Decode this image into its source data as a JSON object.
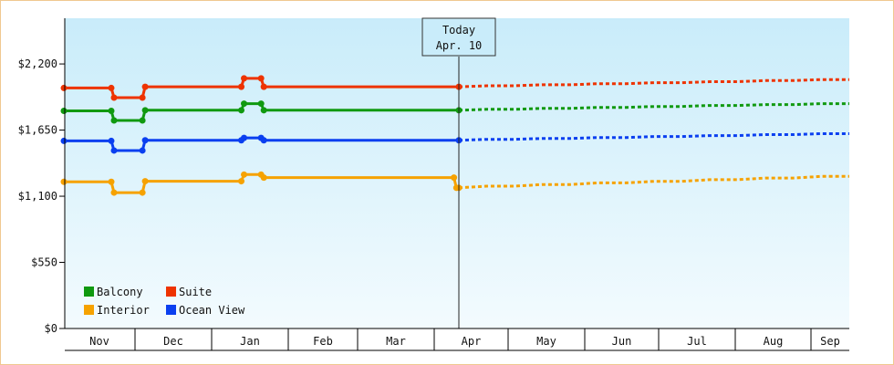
{
  "chart_data": {
    "type": "line",
    "title": "",
    "xlabel": "",
    "ylabel": "",
    "y_ticks": [
      "$0",
      "$550",
      "$1,100",
      "$1,650",
      "$2,200"
    ],
    "y_tick_values": [
      0,
      550,
      1100,
      1650,
      2200
    ],
    "ylim": [
      0,
      2580
    ],
    "x_months": [
      "Nov",
      "Dec",
      "Jan",
      "Feb",
      "Mar",
      "Apr",
      "May",
      "Jun",
      "Jul",
      "Aug",
      "Sep"
    ],
    "today": {
      "title": "Today",
      "date": "Apr. 10"
    },
    "legend": {
      "placement": "bottom-left"
    },
    "series": [
      {
        "name": "Suite",
        "color": "#ee3300",
        "actual": [
          [
            "Oct 31",
            2000
          ],
          [
            "Nov 20",
            2000
          ],
          [
            "Nov 20",
            1920
          ],
          [
            "Dec 3",
            1920
          ],
          [
            "Dec 3",
            2010
          ],
          [
            "Jan 12",
            2010
          ],
          [
            "Jan 12",
            2080
          ],
          [
            "Jan 20",
            2080
          ],
          [
            "Jan 20",
            2010
          ],
          [
            "Apr 10",
            2010
          ]
        ],
        "forecast": [
          [
            "Apr 10",
            2010
          ],
          [
            "Sep 30",
            2070
          ]
        ]
      },
      {
        "name": "Balcony",
        "color": "#109910",
        "actual": [
          [
            "Oct 31",
            1810
          ],
          [
            "Nov 20",
            1810
          ],
          [
            "Nov 20",
            1730
          ],
          [
            "Dec 3",
            1730
          ],
          [
            "Dec 3",
            1815
          ],
          [
            "Jan 12",
            1815
          ],
          [
            "Jan 12",
            1870
          ],
          [
            "Jan 20",
            1870
          ],
          [
            "Jan 20",
            1815
          ],
          [
            "Apr 10",
            1815
          ]
        ],
        "forecast": [
          [
            "Apr 10",
            1815
          ],
          [
            "Sep 30",
            1870
          ]
        ]
      },
      {
        "name": "Ocean View",
        "color": "#0a3ff0",
        "actual": [
          [
            "Oct 31",
            1560
          ],
          [
            "Nov 20",
            1560
          ],
          [
            "Nov 20",
            1480
          ],
          [
            "Dec 3",
            1480
          ],
          [
            "Dec 3",
            1565
          ],
          [
            "Jan 12",
            1565
          ],
          [
            "Jan 12",
            1585
          ],
          [
            "Jan 20",
            1585
          ],
          [
            "Jan 20",
            1565
          ],
          [
            "Apr 10",
            1565
          ]
        ],
        "forecast": [
          [
            "Apr 10",
            1565
          ],
          [
            "Sep 30",
            1620
          ]
        ]
      },
      {
        "name": "Interior",
        "color": "#f6a200",
        "actual": [
          [
            "Oct 31",
            1220
          ],
          [
            "Nov 20",
            1220
          ],
          [
            "Nov 20",
            1130
          ],
          [
            "Dec 3",
            1130
          ],
          [
            "Dec 3",
            1225
          ],
          [
            "Jan 12",
            1225
          ],
          [
            "Jan 12",
            1280
          ],
          [
            "Jan 20",
            1280
          ],
          [
            "Jan 20",
            1255
          ],
          [
            "Apr 8",
            1255
          ],
          [
            "Apr 9",
            1170
          ],
          [
            "Apr 10",
            1170
          ]
        ],
        "forecast": [
          [
            "Apr 10",
            1170
          ],
          [
            "Sep 30",
            1265
          ]
        ]
      }
    ],
    "legend_order": [
      "Balcony",
      "Suite",
      "Interior",
      "Ocean View"
    ]
  }
}
